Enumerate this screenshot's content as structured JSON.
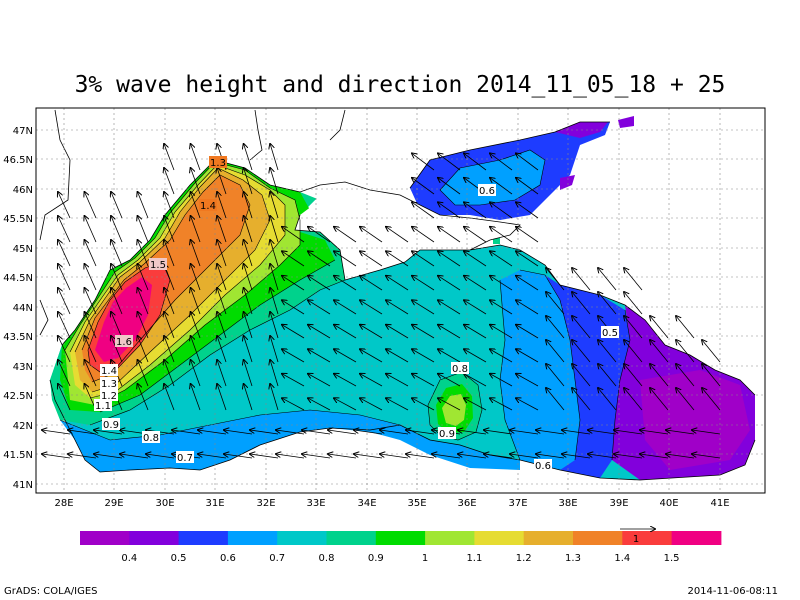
{
  "title": "3% wave height and direction 2014_11_05_18 + 25",
  "footer": {
    "left": "GrADS: COLA/IGES",
    "right": "2014-11-06-08:11"
  },
  "axes": {
    "lat_labels": [
      "47N",
      "46.5N",
      "46N",
      "45.5N",
      "45N",
      "44.5N",
      "44N",
      "43.5N",
      "43N",
      "42.5N",
      "42N",
      "41.5N",
      "41N"
    ],
    "lon_labels": [
      "28E",
      "29E",
      "30E",
      "31E",
      "32E",
      "33E",
      "34E",
      "35E",
      "36E",
      "37E",
      "38E",
      "39E",
      "40E",
      "41E"
    ]
  },
  "contour_labels": [
    {
      "text": "1.3",
      "color": "#f07820"
    },
    {
      "text": "1.4",
      "color": "#f07820"
    },
    {
      "text": "1.5",
      "color": "#f0c8c8"
    },
    {
      "text": "1.6",
      "color": "#f0c8c8"
    },
    {
      "text": "1.4",
      "color": "#ffffff"
    },
    {
      "text": "1.3",
      "color": "#ffffff"
    },
    {
      "text": "1.2",
      "color": "#ffffff"
    },
    {
      "text": "1.1",
      "color": "#ffffff"
    },
    {
      "text": "0.9",
      "color": "#ffffff"
    },
    {
      "text": "0.8",
      "color": "#ffffff"
    },
    {
      "text": "0.7",
      "color": "#ffffff"
    },
    {
      "text": "0.6",
      "color": "#ffffff"
    },
    {
      "text": "0.5",
      "color": "#ffffff"
    },
    {
      "text": "0.8",
      "color": "#ffffff"
    },
    {
      "text": "0.9",
      "color": "#ffffff"
    },
    {
      "text": "0.6",
      "color": "#ffffff"
    }
  ],
  "colorbar": {
    "colors": [
      "#a000c8",
      "#8200dc",
      "#1e3cff",
      "#00a0ff",
      "#00c8c8",
      "#00d28c",
      "#00dc00",
      "#a0e632",
      "#e6dc32",
      "#e6af2d",
      "#f08228",
      "#fa3c3c",
      "#f00082"
    ],
    "labels": [
      "0.4",
      "0.5",
      "0.6",
      "0.7",
      "0.8",
      "0.9",
      "1",
      "1.1",
      "1.2",
      "1.3",
      "1.4",
      "1.5"
    ],
    "reference_vector_label": "1"
  }
}
